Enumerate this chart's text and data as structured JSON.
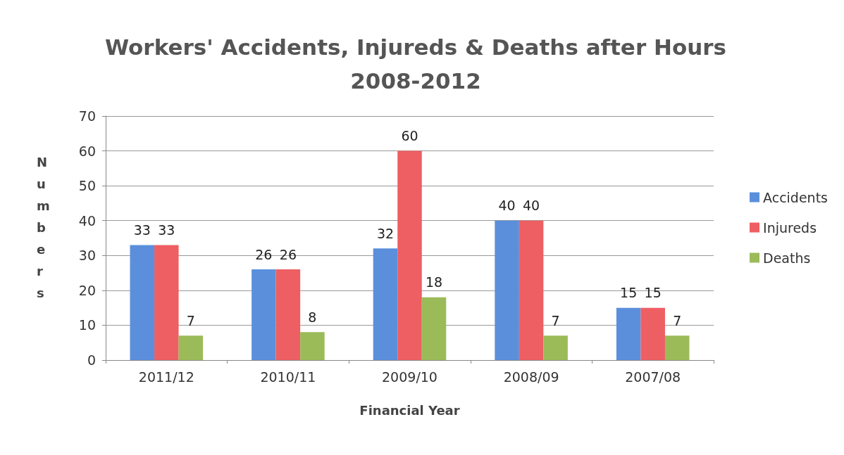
{
  "chart_data": {
    "type": "bar",
    "title": "Workers' Accidents, Injureds & Deaths after Hours\n2008-2012",
    "xlabel": "Financial Year",
    "ylabel": "Numbers",
    "categories": [
      "2011/12",
      "2010/11",
      "2009/10",
      "2008/09",
      "2007/08"
    ],
    "series": [
      {
        "name": "Accidents",
        "color": "#5b8fdc",
        "values": [
          33,
          26,
          32,
          40,
          15
        ]
      },
      {
        "name": "Injureds",
        "color": "#ee5f63",
        "values": [
          33,
          26,
          60,
          40,
          15
        ]
      },
      {
        "name": "Deaths",
        "color": "#9bbb59",
        "values": [
          7,
          8,
          18,
          7,
          7
        ]
      }
    ],
    "ylim": [
      0,
      70
    ],
    "yticks": [
      0,
      10,
      20,
      30,
      40,
      50,
      60,
      70
    ],
    "grid": "y",
    "legend": "right",
    "data_labels": true
  }
}
